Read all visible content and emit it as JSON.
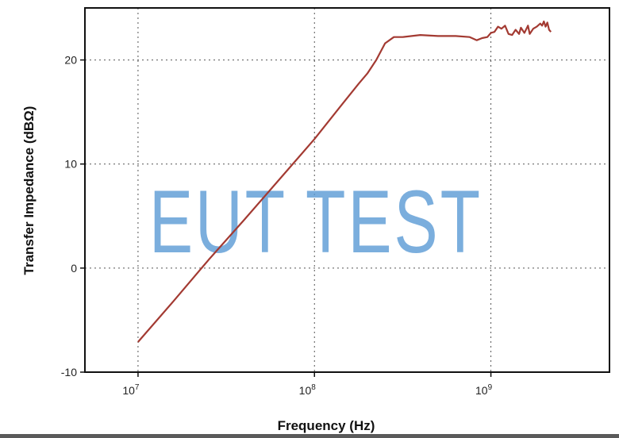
{
  "chart_data": {
    "type": "line",
    "title": "",
    "xlabel": "Frequency (Hz)",
    "ylabel": "Transfer Impedance (dBΩ)",
    "xscale": "log",
    "xlim": [
      5000000.0,
      4700000000.0
    ],
    "ylim": [
      -10,
      25
    ],
    "x_ticks": [
      {
        "base": "10",
        "exp": "7",
        "value": 10000000.0
      },
      {
        "base": "10",
        "exp": "8",
        "value": 100000000.0
      },
      {
        "base": "10",
        "exp": "9",
        "value": 1000000000.0
      }
    ],
    "y_ticks": [
      -10,
      0,
      10,
      20
    ],
    "y_tick_labels": [
      "-10",
      "0",
      "10",
      "20"
    ],
    "grid": true,
    "series": [
      {
        "color": "#a33a32",
        "log10_x": [
          7.0,
          7.2,
          7.4,
          7.6,
          7.8,
          8.0,
          8.15,
          8.25,
          8.3,
          8.35,
          8.4,
          8.45,
          8.5,
          8.6,
          8.7,
          8.8,
          8.88,
          8.92,
          8.95,
          8.98,
          9.0,
          9.02,
          9.04,
          9.06,
          9.08,
          9.1,
          9.12,
          9.14,
          9.16,
          9.17,
          9.19,
          9.21,
          9.22,
          9.24,
          9.26,
          9.28,
          9.29,
          9.3,
          9.31,
          9.32,
          9.33,
          9.34
        ],
        "y": [
          -7.1,
          -3.2,
          0.8,
          4.6,
          8.5,
          12.4,
          15.6,
          17.7,
          18.7,
          20.0,
          21.6,
          22.2,
          22.2,
          22.4,
          22.3,
          22.3,
          22.2,
          21.9,
          22.1,
          22.2,
          22.6,
          22.7,
          23.2,
          23.0,
          23.3,
          22.5,
          22.4,
          22.9,
          22.5,
          23.1,
          22.6,
          23.3,
          22.5,
          23.0,
          23.2,
          23.5,
          23.3,
          23.7,
          23.2,
          23.6,
          22.9,
          22.7
        ]
      }
    ]
  },
  "watermark": "EUT TEST"
}
